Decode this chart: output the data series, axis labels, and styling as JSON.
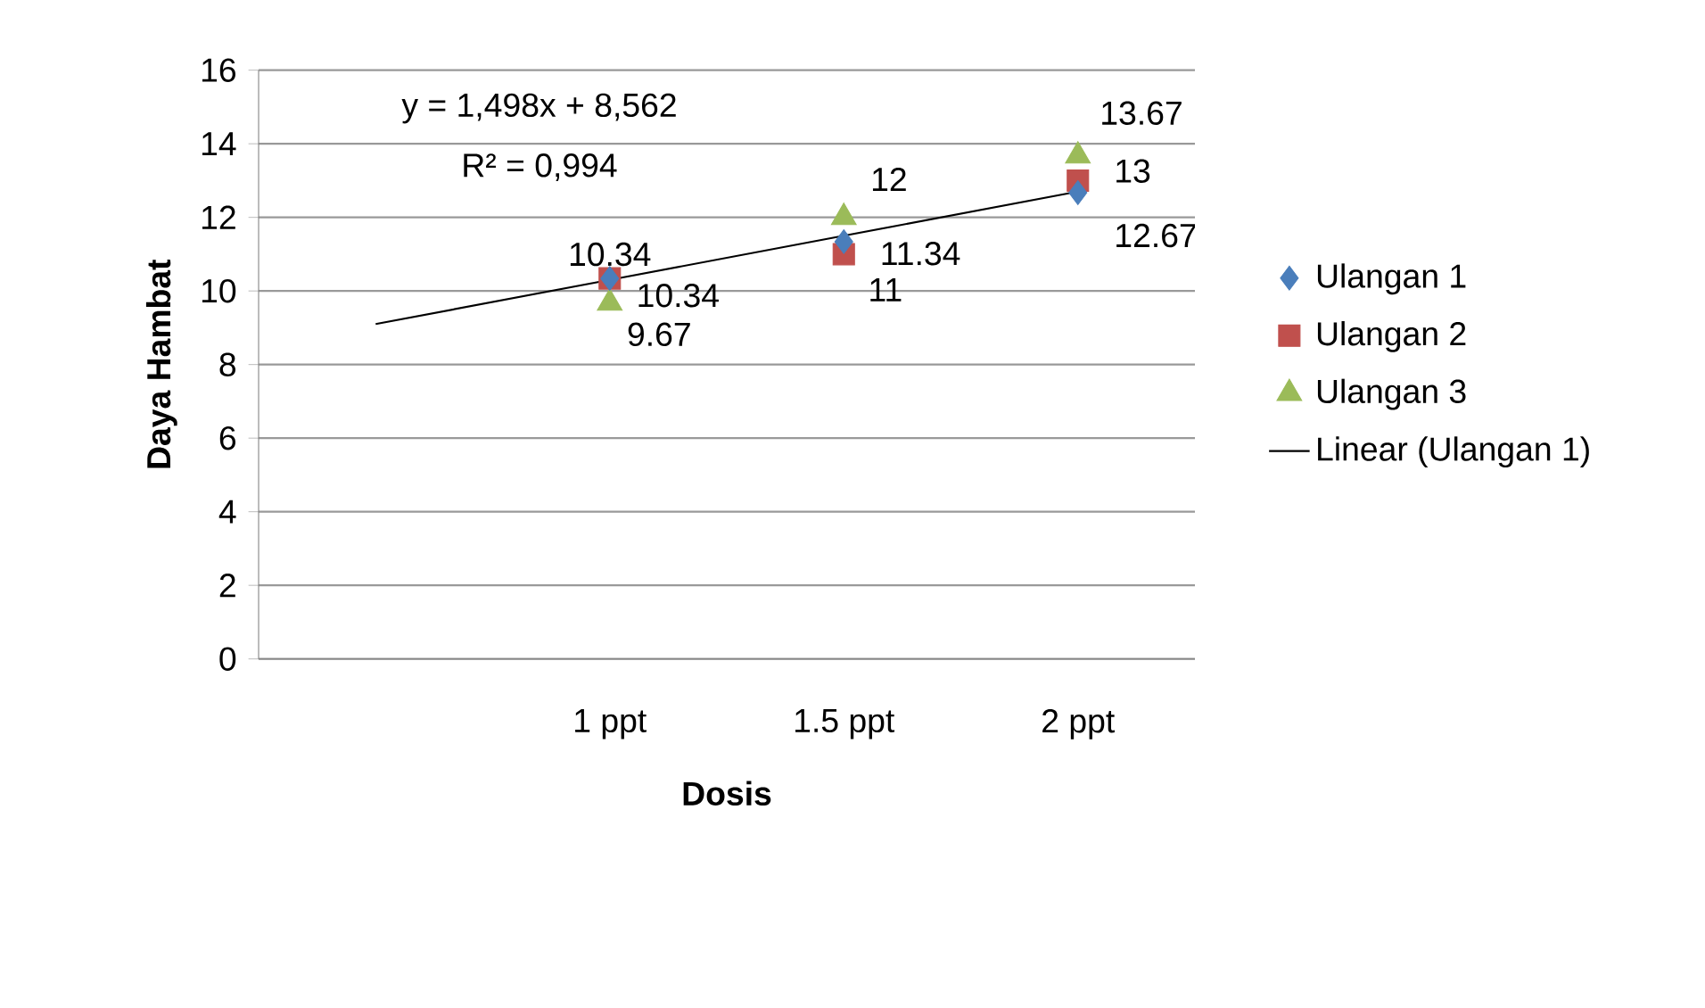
{
  "chart_data": {
    "type": "scatter",
    "xlabel": "Dosis",
    "ylabel": "Daya Hambat",
    "categories": [
      null,
      "1 ppt",
      "1.5 ppt",
      "2 ppt"
    ],
    "ylim": [
      0,
      16
    ],
    "yticks": [
      0,
      2,
      4,
      6,
      8,
      10,
      12,
      14,
      16
    ],
    "grid": "y",
    "legend": "right",
    "series": [
      {
        "name": "Ulangan 1",
        "color": "#4a7ebb",
        "marker": "diamond",
        "data_labels": true,
        "values": [
          null,
          10.34,
          11.34,
          12.67
        ]
      },
      {
        "name": "Ulangan 2",
        "color": "#c0504d",
        "marker": "square",
        "data_labels": true,
        "values": [
          null,
          10.34,
          11,
          13
        ]
      },
      {
        "name": "Ulangan 3",
        "color": "#9bbb59",
        "marker": "triangle",
        "data_labels": true,
        "values": [
          null,
          9.67,
          12,
          13.67
        ]
      },
      {
        "name": "Linear (Ulangan 1)",
        "type": "line",
        "color": "#000000",
        "marker": "none",
        "line_style": "solid",
        "values": [
          9.1,
          10.3,
          11.5,
          12.7
        ]
      }
    ],
    "annotations": [
      "y = 1,498x + 8,562",
      "R² = 0,994"
    ]
  }
}
